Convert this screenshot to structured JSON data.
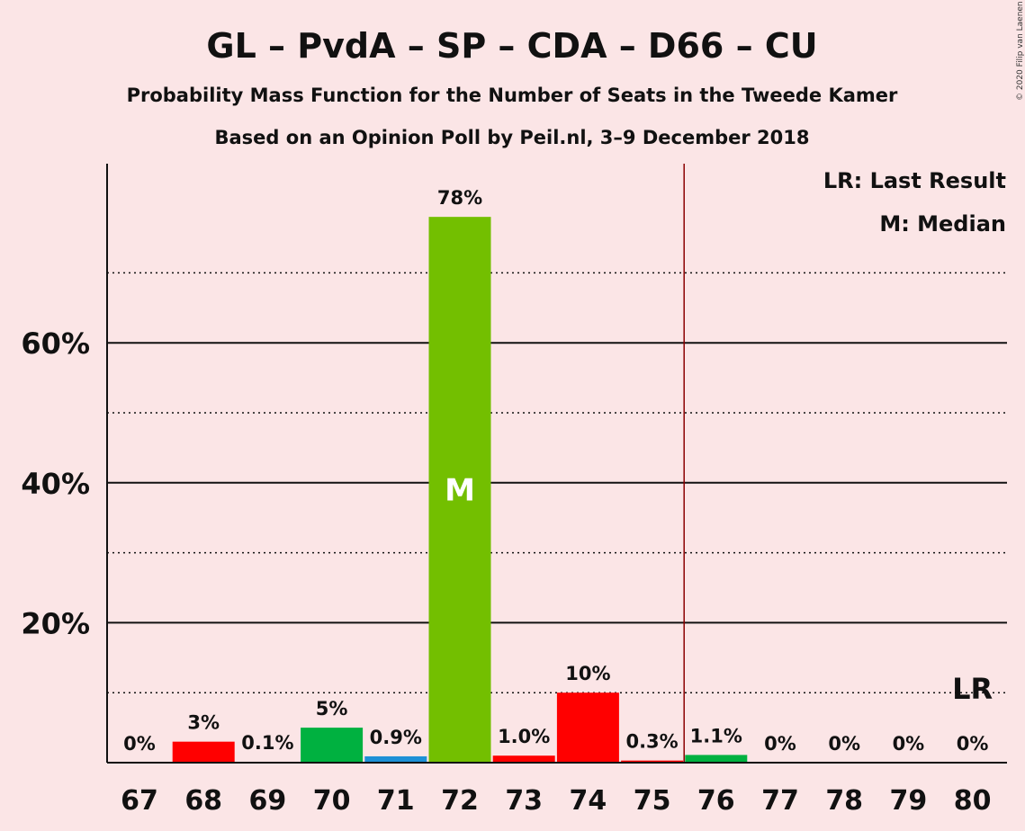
{
  "chart_data": {
    "type": "bar",
    "title": "GL – PvdA – SP – CDA – D66 – CU",
    "subtitle": "Probability Mass Function for the Number of Seats in the Tweede Kamer",
    "subtitle2": "Based on an Opinion Poll by Peil.nl, 3–9 December 2018",
    "copyright": "© 2020 Filip van Laenen",
    "xlabel": "",
    "ylabel": "",
    "ylim": [
      0,
      85
    ],
    "yticks": [
      20,
      40,
      60
    ],
    "ytick_labels": [
      "20%",
      "40%",
      "60%"
    ],
    "y_dotted_gridlines": [
      10,
      30,
      50,
      70
    ],
    "categories": [
      "67",
      "68",
      "69",
      "70",
      "71",
      "72",
      "73",
      "74",
      "75",
      "76",
      "77",
      "78",
      "79",
      "80"
    ],
    "values": [
      0,
      3,
      0.1,
      5,
      0.9,
      78,
      1.0,
      10,
      0.3,
      1.1,
      0,
      0,
      0,
      0
    ],
    "value_labels": [
      "0%",
      "3%",
      "0.1%",
      "5%",
      "0.9%",
      "78%",
      "1.0%",
      "10%",
      "0.3%",
      "1.1%",
      "0%",
      "0%",
      "0%",
      "0%"
    ],
    "bar_colors": [
      "#ff0000",
      "#ff0000",
      "#ff0000",
      "#00b140",
      "#1e90d6",
      "#73bf00",
      "#ff0000",
      "#ff0000",
      "#ff0000",
      "#00b140",
      "#00b140",
      "#00b140",
      "#00b140",
      "#00b140"
    ],
    "median": "72",
    "median_label": "M",
    "majority_line_between": [
      "75",
      "76"
    ],
    "majority_line_color": "#8b0000",
    "last_result": "80",
    "last_result_label": "LR",
    "legend": [
      "LR: Last Result",
      "M: Median"
    ],
    "legend_position": "top-right",
    "grid": true
  }
}
